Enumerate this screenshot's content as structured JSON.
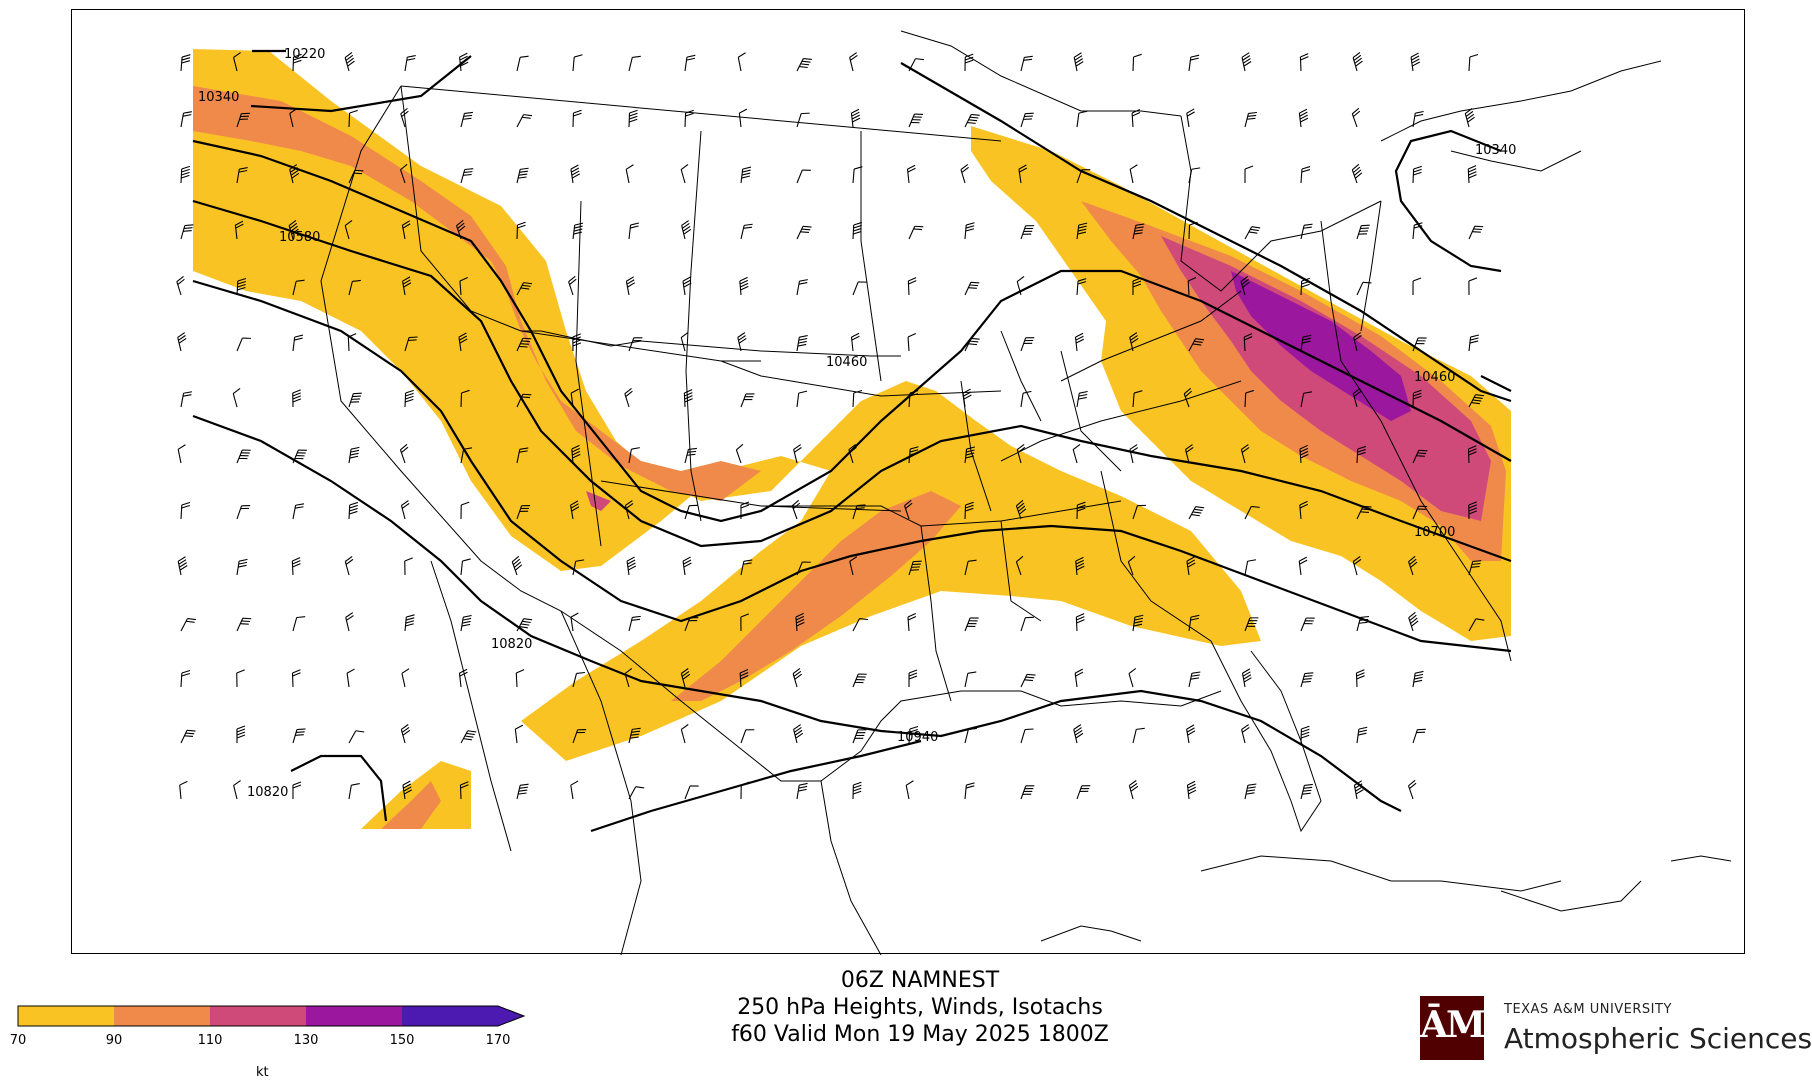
{
  "title": {
    "line1": "06Z NAMNEST",
    "line2": "250 hPa Heights, Winds, Isotachs",
    "line3": "f60 Valid Mon 19 May 2025 1800Z"
  },
  "colorbar": {
    "unit": "kt",
    "ticks": [
      "70",
      "90",
      "110",
      "130",
      "150",
      "170"
    ],
    "colors": [
      "#f9c423",
      "#f08a4b",
      "#cf4a79",
      "#9b179e",
      "#4c1ab0"
    ]
  },
  "contour_labels": [
    "10220",
    "10340",
    "10580",
    "10460",
    "10340",
    "10460",
    "10700",
    "10820",
    "10940",
    "10820"
  ],
  "logo": {
    "mark": "ĀM",
    "university": "TEXAS A&M UNIVERSITY",
    "department": "Atmospheric Sciences",
    "brand_color": "#500000"
  },
  "map_colors": {
    "isotach_70": "#f9c423",
    "isotach_90": "#f08a4b",
    "isotach_110": "#cf4a79",
    "isotach_130": "#9b179e",
    "height_contour": "#000000",
    "borders": "#000000"
  }
}
